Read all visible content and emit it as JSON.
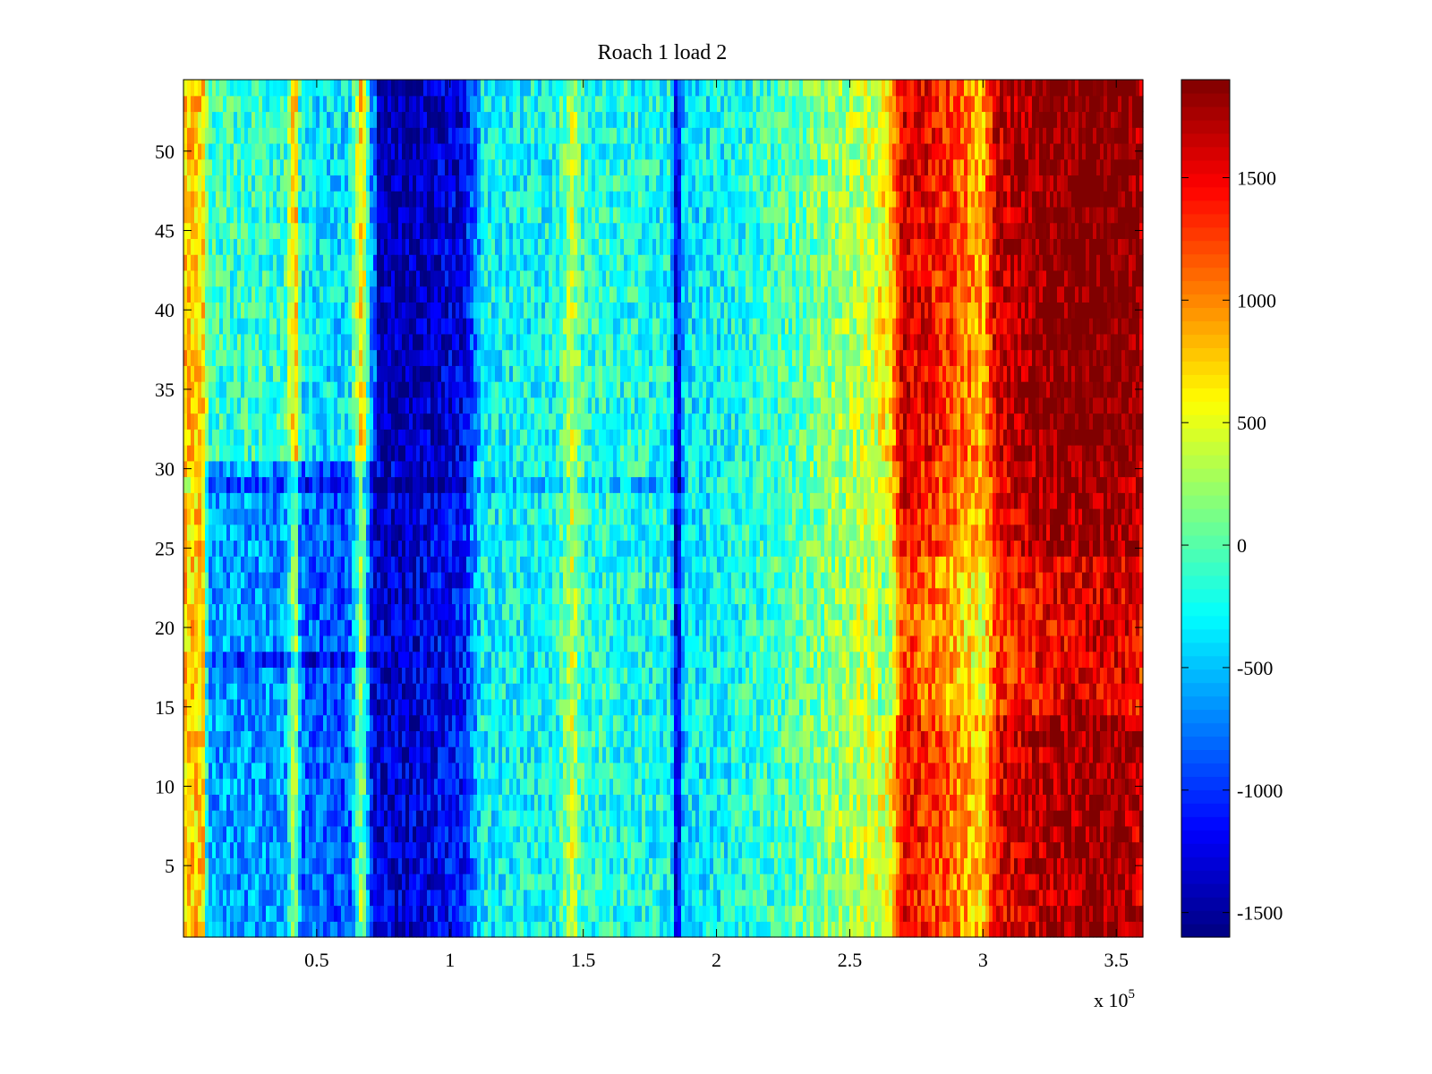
{
  "chart_data": {
    "type": "heatmap",
    "title": "Roach 1 load 2",
    "xlabel": "",
    "ylabel": "",
    "x_exponent_label": "x 10",
    "x_exponent": "5",
    "xlim": [
      0,
      360000
    ],
    "ylim": [
      0.5,
      54.5
    ],
    "x_ticks": [
      50000,
      100000,
      150000,
      200000,
      250000,
      300000,
      350000
    ],
    "x_tick_labels": [
      "0.5",
      "1",
      "1.5",
      "2",
      "2.5",
      "3",
      "3.5"
    ],
    "y_ticks": [
      5,
      10,
      15,
      20,
      25,
      30,
      35,
      40,
      45,
      50
    ],
    "y_tick_labels": [
      "5",
      "10",
      "15",
      "20",
      "25",
      "30",
      "35",
      "40",
      "45",
      "50"
    ],
    "colormap": "jet",
    "clim": [
      -1600,
      1900
    ],
    "colorbar_ticks": [
      -1500,
      -1000,
      -500,
      0,
      500,
      1000,
      1500
    ],
    "colorbar_tick_labels": [
      "-1500",
      "-1000",
      "-500",
      "0",
      "500",
      "1000",
      "1500"
    ],
    "rows": 54,
    "column_profile": {
      "x": [
        0,
        8000,
        9000,
        38000,
        42000,
        44000,
        62000,
        67000,
        71000,
        85000,
        105000,
        112000,
        140000,
        146000,
        150000,
        183000,
        185000,
        188000,
        200000,
        230000,
        255000,
        265000,
        270000,
        285000,
        300000,
        305000,
        320000,
        340000,
        355000,
        360000
      ],
      "value": [
        800,
        700,
        -600,
        -650,
        350,
        -800,
        -900,
        300,
        -1300,
        -1300,
        -1100,
        -300,
        -250,
        400,
        -150,
        -250,
        -1400,
        -350,
        -300,
        0,
        350,
        500,
        1500,
        1200,
        700,
        1500,
        1700,
        1850,
        1800,
        1600
      ]
    },
    "row_regions": [
      {
        "x_from": 8000,
        "x_to": 72000,
        "y_from": 30.5,
        "y_to": 54.5,
        "value_shift": 500
      },
      {
        "x_from": 72000,
        "x_to": 112000,
        "y_from": 30.5,
        "y_to": 54.5,
        "value_shift": -150
      },
      {
        "x_from": 0,
        "x_to": 190000,
        "y_from": 28.5,
        "y_to": 29.5,
        "value_shift": -300
      },
      {
        "x_from": 8000,
        "x_to": 72000,
        "y_from": 17.5,
        "y_to": 18.5,
        "value_shift": -400
      },
      {
        "x_from": 260000,
        "x_to": 360000,
        "y_from": 30.5,
        "y_to": 54.5,
        "value_shift": 150
      },
      {
        "x_from": 260000,
        "x_to": 360000,
        "y_from": 14.5,
        "y_to": 24.5,
        "value_shift": -250
      }
    ]
  }
}
